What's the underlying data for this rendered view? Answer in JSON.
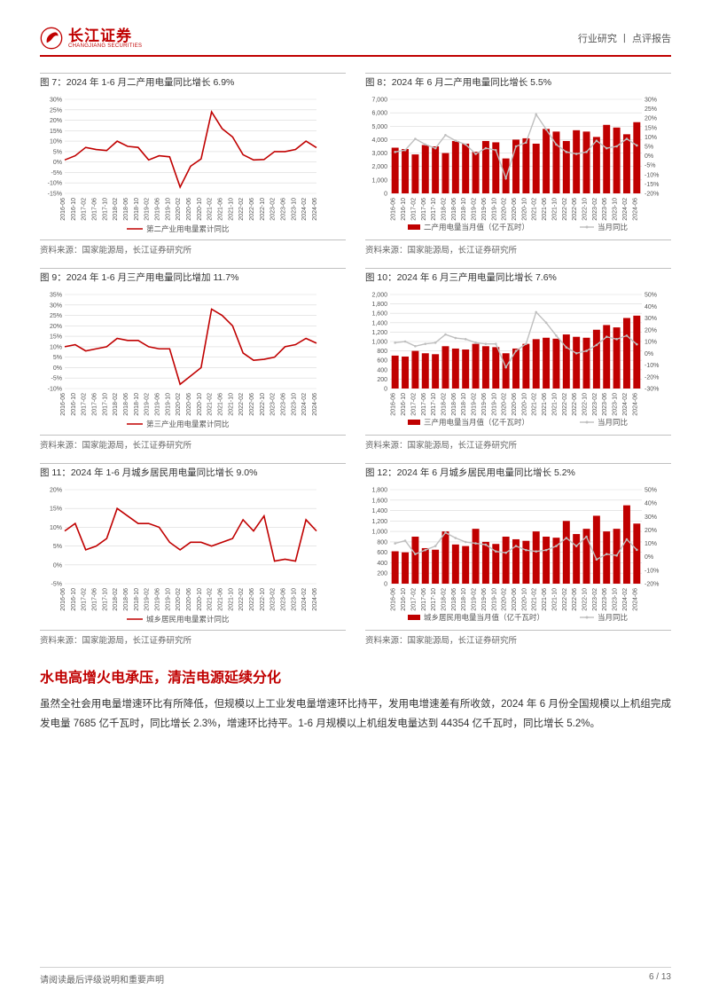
{
  "header": {
    "logo_cn": "长江证券",
    "logo_en": "CHANGJIANG SECURITIES",
    "right": "行业研究 丨 点评报告"
  },
  "charts": [
    {
      "id": "c7",
      "title": "图 7：2024 年 1-6 月二产用电量同比增长 6.9%",
      "type": "line",
      "x_labels": [
        "2016-06",
        "2016-10",
        "2017-02",
        "2017-06",
        "2017-10",
        "2018-02",
        "2018-06",
        "2018-10",
        "2019-02",
        "2019-06",
        "2019-10",
        "2020-02",
        "2020-06",
        "2020-10",
        "2021-02",
        "2021-06",
        "2021-10",
        "2022-02",
        "2022-06",
        "2022-10",
        "2023-02",
        "2023-06",
        "2023-10",
        "2024-02",
        "2024-06"
      ],
      "ylim": [
        -15,
        30
      ],
      "y_ticks": [
        -15,
        -10,
        -5,
        0,
        5,
        10,
        15,
        20,
        25,
        30
      ],
      "series": [
        {
          "name": "第二产业用电量累计同比",
          "color": "#c00000",
          "values": [
            1,
            3,
            7,
            6,
            5.5,
            10,
            7.5,
            7,
            1,
            3,
            2.5,
            -12,
            -2,
            1.5,
            24,
            16,
            12,
            3.5,
            1,
            1.2,
            5,
            5,
            6,
            10,
            6.9
          ]
        }
      ],
      "legend": [
        "第二产业用电量累计同比"
      ],
      "source": "资料来源：国家能源局，长江证券研究所"
    },
    {
      "id": "c8",
      "title": "图 8：2024 年 6 月二产用电量同比增长 5.5%",
      "type": "bar-line",
      "x_labels": [
        "2016-06",
        "2016-10",
        "2017-02",
        "2017-06",
        "2017-10",
        "2018-02",
        "2018-06",
        "2018-10",
        "2019-02",
        "2019-06",
        "2019-10",
        "2020-02",
        "2020-06",
        "2020-10",
        "2021-02",
        "2021-06",
        "2021-10",
        "2022-02",
        "2022-06",
        "2022-10",
        "2023-02",
        "2023-06",
        "2023-10",
        "2024-02",
        "2024-06"
      ],
      "ylim": [
        0,
        7000
      ],
      "y_ticks": [
        0,
        1000,
        2000,
        3000,
        4000,
        5000,
        6000,
        7000
      ],
      "y2lim": [
        -20,
        30
      ],
      "y2_ticks": [
        -20,
        -15,
        -10,
        -5,
        0,
        5,
        10,
        15,
        20,
        25,
        30
      ],
      "bar": {
        "name": "二产用电量当月值（亿千瓦时）",
        "color": "#c00000",
        "values": [
          3400,
          3300,
          2900,
          3600,
          3500,
          3000,
          3900,
          3700,
          3100,
          3900,
          3800,
          2600,
          4000,
          4100,
          3700,
          4800,
          4600,
          3900,
          4700,
          4600,
          4200,
          5100,
          4900,
          4400,
          5300
        ]
      },
      "line": {
        "name": "当月同比",
        "color": "#bfbfbf",
        "values": [
          2,
          3,
          9,
          6,
          4,
          11,
          8,
          6,
          1,
          4,
          3,
          -12,
          5,
          7,
          22,
          14,
          6,
          2,
          1,
          2,
          8,
          4,
          5,
          9,
          5.5
        ]
      },
      "legend": [
        "二产用电量当月值（亿千瓦时）",
        "当月同比"
      ],
      "source": "资料来源：国家能源局，长江证券研究所"
    },
    {
      "id": "c9",
      "title": "图 9：2024 年 1-6 月三产用电量同比增加 11.7%",
      "type": "line",
      "x_labels": [
        "2016-06",
        "2016-10",
        "2017-02",
        "2017-06",
        "2017-10",
        "2018-02",
        "2018-06",
        "2018-10",
        "2019-02",
        "2019-06",
        "2019-10",
        "2020-02",
        "2020-06",
        "2020-10",
        "2021-02",
        "2021-06",
        "2021-10",
        "2022-02",
        "2022-06",
        "2022-10",
        "2023-02",
        "2023-06",
        "2023-10",
        "2024-02",
        "2024-06"
      ],
      "ylim": [
        -10,
        35
      ],
      "y_ticks": [
        -10,
        -5,
        0,
        5,
        10,
        15,
        20,
        25,
        30,
        35
      ],
      "series": [
        {
          "name": "第三产业用电量累计同比",
          "color": "#c00000",
          "values": [
            10,
            11,
            8,
            9,
            10,
            14,
            13,
            13,
            10,
            9,
            9,
            -8,
            -4,
            0,
            28,
            25,
            20,
            7,
            3.5,
            4,
            5,
            10,
            11,
            14,
            11.7
          ]
        }
      ],
      "legend": [
        "第三产业用电量累计同比"
      ],
      "source": "资料来源：国家能源局，长江证券研究所"
    },
    {
      "id": "c10",
      "title": "图 10：2024 年 6 月三产用电量同比增长 7.6%",
      "type": "bar-line",
      "x_labels": [
        "2016-06",
        "2016-10",
        "2017-02",
        "2017-06",
        "2017-10",
        "2018-02",
        "2018-06",
        "2018-10",
        "2019-02",
        "2019-06",
        "2019-10",
        "2020-02",
        "2020-06",
        "2020-10",
        "2021-02",
        "2021-06",
        "2021-10",
        "2022-02",
        "2022-06",
        "2022-10",
        "2023-02",
        "2023-06",
        "2023-10",
        "2024-02",
        "2024-06"
      ],
      "ylim": [
        0,
        2000
      ],
      "y_ticks": [
        0,
        200,
        400,
        600,
        800,
        1000,
        1200,
        1400,
        1600,
        1800,
        2000
      ],
      "y2lim": [
        -30,
        50
      ],
      "y2_ticks": [
        -30,
        -20,
        -10,
        0,
        10,
        20,
        30,
        40,
        50
      ],
      "bar": {
        "name": "三产用电量当月值（亿千瓦时）",
        "color": "#c00000",
        "values": [
          700,
          680,
          800,
          750,
          730,
          900,
          850,
          830,
          950,
          900,
          880,
          750,
          850,
          950,
          1050,
          1080,
          1060,
          1150,
          1100,
          1080,
          1250,
          1350,
          1300,
          1500,
          1550
        ]
      },
      "line": {
        "name": "当月同比",
        "color": "#bfbfbf",
        "values": [
          9,
          10,
          6,
          8,
          9,
          16,
          13,
          12,
          9,
          8,
          8,
          -12,
          2,
          8,
          35,
          26,
          15,
          5,
          0,
          2,
          7,
          14,
          12,
          15,
          7.6
        ]
      },
      "legend": [
        "三产用电量当月值（亿千瓦时）",
        "当月同比"
      ],
      "source": "资料来源：国家能源局，长江证券研究所"
    },
    {
      "id": "c11",
      "title": "图 11：2024 年 1-6 月城乡居民用电量同比增长 9.0%",
      "type": "line",
      "x_labels": [
        "2016-06",
        "2016-10",
        "2017-02",
        "2017-06",
        "2017-10",
        "2018-02",
        "2018-06",
        "2018-10",
        "2019-02",
        "2019-06",
        "2019-10",
        "2020-02",
        "2020-06",
        "2020-10",
        "2021-02",
        "2021-06",
        "2021-10",
        "2022-02",
        "2022-06",
        "2022-10",
        "2023-02",
        "2023-06",
        "2023-10",
        "2024-02",
        "2024-06"
      ],
      "ylim": [
        -5,
        20
      ],
      "y_ticks": [
        -5,
        0,
        5,
        10,
        15,
        20
      ],
      "series": [
        {
          "name": "城乡居民用电量累计同比",
          "color": "#c00000",
          "values": [
            9,
            11,
            4,
            5,
            7,
            15,
            13,
            11,
            11,
            10,
            6,
            4,
            6,
            6,
            5,
            6,
            7,
            12,
            9,
            13,
            1,
            1.5,
            1,
            12,
            9
          ]
        }
      ],
      "legend": [
        "城乡居民用电量累计同比"
      ],
      "source": "资料来源：国家能源局，长江证券研究所"
    },
    {
      "id": "c12",
      "title": "图 12：2024 年 6 月城乡居民用电量同比增长 5.2%",
      "type": "bar-line",
      "x_labels": [
        "2016-06",
        "2016-10",
        "2017-02",
        "2017-06",
        "2017-10",
        "2018-02",
        "2018-06",
        "2018-10",
        "2019-02",
        "2019-06",
        "2019-10",
        "2020-02",
        "2020-06",
        "2020-10",
        "2021-02",
        "2021-06",
        "2021-10",
        "2022-02",
        "2022-06",
        "2022-10",
        "2023-02",
        "2023-06",
        "2023-10",
        "2024-02",
        "2024-06"
      ],
      "ylim": [
        0,
        1800
      ],
      "y_ticks": [
        0,
        200,
        400,
        600,
        800,
        1000,
        1200,
        1400,
        1600,
        1800
      ],
      "y2lim": [
        -20,
        50
      ],
      "y2_ticks": [
        -20,
        -10,
        0,
        10,
        20,
        30,
        40,
        50
      ],
      "bar": {
        "name": "城乡居民用电量当月值（亿千瓦时）",
        "color": "#c00000",
        "values": [
          620,
          600,
          900,
          680,
          650,
          1000,
          750,
          720,
          1050,
          800,
          760,
          900,
          850,
          820,
          1000,
          900,
          880,
          1200,
          950,
          1050,
          1300,
          1000,
          1050,
          1500,
          1150
        ]
      },
      "line": {
        "name": "当月同比",
        "color": "#bfbfbf",
        "values": [
          10,
          12,
          2,
          5,
          8,
          18,
          14,
          11,
          10,
          9,
          4,
          3,
          8,
          5,
          4,
          5,
          8,
          14,
          8,
          15,
          -2,
          2,
          1,
          13,
          5.2
        ]
      },
      "legend": [
        "城乡居民用电量当月值（亿千瓦时）",
        "当月同比"
      ],
      "source": "资料来源：国家能源局，长江证券研究所"
    }
  ],
  "section": {
    "heading": "水电高增火电承压，清洁电源延续分化",
    "paragraph": "虽然全社会用电量增速环比有所降低，但规模以上工业发电量增速环比持平，发用电增速差有所收敛，2024 年 6 月份全国规模以上机组完成发电量 7685 亿千瓦时，同比增长 2.3%，增速环比持平。1-6 月规模以上机组发电量达到 44354 亿千瓦时，同比增长 5.2%。"
  },
  "footer": {
    "left": "请阅读最后评级说明和重要声明",
    "right": "6 / 13"
  },
  "style": {
    "accent": "#c00000",
    "grid": "#d9d9d9",
    "line2": "#bfbfbf",
    "axis_font": 7,
    "legend_font": 8.5
  }
}
